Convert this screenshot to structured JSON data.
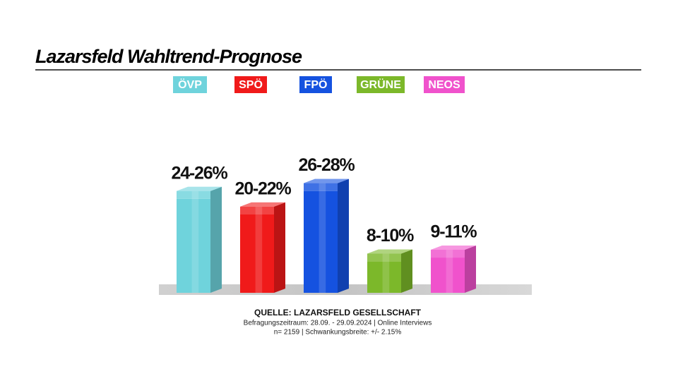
{
  "chart_data": {
    "type": "range-bar",
    "title": "Lazarsfeld Wahltrend-Prognose",
    "categories": [
      "ÖVP",
      "SPÖ",
      "FPÖ",
      "GRÜNE",
      "NEOS"
    ],
    "colors": [
      "#6fd3dc",
      "#f01a1a",
      "#1552e0",
      "#7cb82a",
      "#f052cc"
    ],
    "low": [
      24,
      20,
      26,
      8,
      9
    ],
    "high": [
      26,
      22,
      28,
      10,
      11
    ],
    "value_labels": [
      "24-26%",
      "20-22%",
      "26-28%",
      "8-10%",
      "9-11%"
    ],
    "source": "QUELLE: LAZARSFELD GESELLSCHAFT",
    "notes": [
      "Befragungszeitraum: 28.09. - 29.09.2024 | Online Interviews",
      "n= 2159 | Schwankungsbreite: +/- 2.15%"
    ]
  }
}
